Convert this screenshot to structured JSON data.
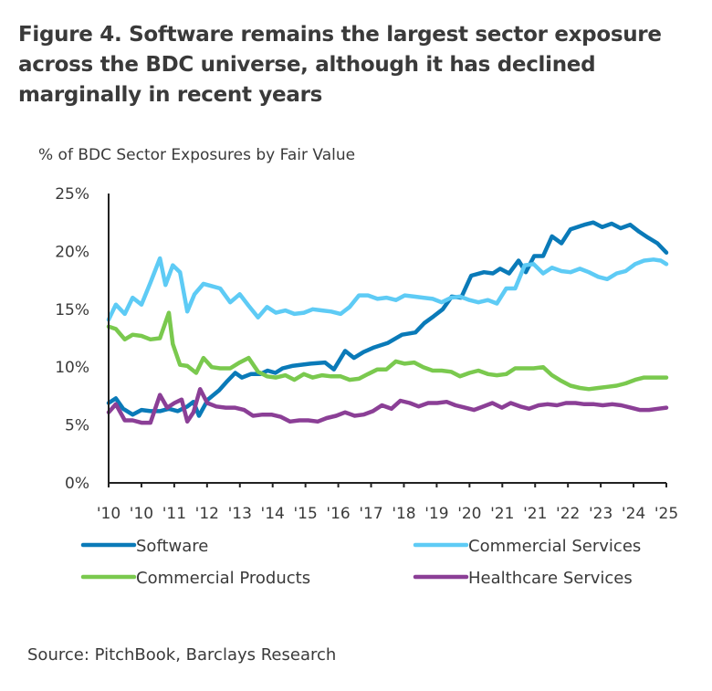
{
  "title": "Figure 4. Software remains the largest sector exposure across the BDC universe, although it has declined marginally in recent years",
  "source": "Source: PitchBook, Barclays Research",
  "chart_data": {
    "type": "line",
    "title": "Figure 4. Software remains the largest sector exposure across the BDC universe, although it has declined marginally in recent years",
    "subtitle": "% of BDC Sector Exposures by Fair Value",
    "xlabel": "",
    "ylabel": "% of BDC Sector Exposures by Fair Value",
    "ylim": [
      0,
      25
    ],
    "y_ticks": [
      0,
      5,
      10,
      15,
      20,
      25
    ],
    "y_tick_labels": [
      "0%",
      "5%",
      "10%",
      "15%",
      "20%",
      "25%"
    ],
    "x_tick_labels": [
      "'10",
      "'10",
      "'11",
      "'12",
      "'13",
      "'14",
      "'15",
      "'16",
      "'17",
      "'18",
      "'19",
      "'20",
      "'21",
      "'21",
      "'22",
      "'23",
      "'24",
      "'25"
    ],
    "x_range": [
      0,
      1
    ],
    "grid": false,
    "legend": "bottom",
    "series": [
      {
        "name": "Software",
        "color": "#0a7ab8",
        "x": [
          0,
          0.013,
          0.026,
          0.043,
          0.059,
          0.075,
          0.092,
          0.108,
          0.124,
          0.141,
          0.152,
          0.162,
          0.178,
          0.198,
          0.211,
          0.227,
          0.239,
          0.255,
          0.272,
          0.285,
          0.299,
          0.312,
          0.329,
          0.362,
          0.388,
          0.404,
          0.424,
          0.44,
          0.457,
          0.476,
          0.501,
          0.526,
          0.55,
          0.566,
          0.583,
          0.599,
          0.615,
          0.632,
          0.65,
          0.673,
          0.689,
          0.702,
          0.718,
          0.735,
          0.748,
          0.763,
          0.779,
          0.795,
          0.812,
          0.828,
          0.853,
          0.869,
          0.885,
          0.902,
          0.918,
          0.935,
          0.951,
          0.967,
          0.984,
          1.0
        ],
        "values": [
          6.9,
          7.3,
          6.4,
          5.9,
          6.3,
          6.2,
          6.2,
          6.4,
          6.2,
          6.6,
          7.0,
          5.8,
          7.2,
          8.0,
          8.7,
          9.5,
          9.1,
          9.4,
          9.4,
          9.7,
          9.5,
          9.9,
          10.1,
          10.3,
          10.4,
          9.8,
          11.4,
          10.8,
          11.3,
          11.7,
          12.1,
          12.8,
          13.0,
          13.8,
          14.4,
          15.0,
          16.1,
          16.0,
          17.9,
          18.2,
          18.1,
          18.5,
          18.1,
          19.2,
          18.2,
          19.6,
          19.6,
          21.3,
          20.7,
          21.9,
          22.3,
          22.5,
          22.1,
          22.4,
          22.0,
          22.3,
          21.7,
          21.2,
          20.7,
          19.9
        ]
      },
      {
        "name": "Commercial Services",
        "color": "#5ecbf5",
        "x": [
          0,
          0.013,
          0.029,
          0.043,
          0.059,
          0.075,
          0.092,
          0.102,
          0.115,
          0.128,
          0.141,
          0.154,
          0.17,
          0.185,
          0.2,
          0.218,
          0.235,
          0.251,
          0.268,
          0.284,
          0.3,
          0.317,
          0.333,
          0.35,
          0.366,
          0.383,
          0.399,
          0.416,
          0.432,
          0.449,
          0.465,
          0.482,
          0.498,
          0.515,
          0.531,
          0.548,
          0.564,
          0.581,
          0.597,
          0.614,
          0.63,
          0.647,
          0.663,
          0.68,
          0.696,
          0.713,
          0.729,
          0.746,
          0.762,
          0.779,
          0.795,
          0.812,
          0.828,
          0.845,
          0.861,
          0.878,
          0.894,
          0.911,
          0.927,
          0.944,
          0.96,
          0.977,
          0.99,
          1.0
        ],
        "values": [
          14.1,
          15.4,
          14.6,
          16.0,
          15.4,
          17.3,
          19.4,
          17.1,
          18.8,
          18.2,
          14.8,
          16.3,
          17.2,
          17.0,
          16.8,
          15.6,
          16.3,
          15.3,
          14.3,
          15.2,
          14.7,
          14.9,
          14.6,
          14.7,
          15.0,
          14.9,
          14.8,
          14.6,
          15.2,
          16.2,
          16.2,
          15.9,
          16.0,
          15.8,
          16.2,
          16.1,
          16.0,
          15.9,
          15.6,
          16.0,
          16.1,
          15.8,
          15.6,
          15.8,
          15.5,
          16.8,
          16.8,
          18.8,
          18.9,
          18.1,
          18.6,
          18.3,
          18.2,
          18.5,
          18.2,
          17.8,
          17.6,
          18.1,
          18.3,
          18.9,
          19.2,
          19.3,
          19.2,
          18.9
        ]
      },
      {
        "name": "Commercial Products",
        "color": "#7ac94e",
        "x": [
          0,
          0.013,
          0.029,
          0.043,
          0.059,
          0.075,
          0.092,
          0.108,
          0.115,
          0.128,
          0.141,
          0.157,
          0.17,
          0.185,
          0.2,
          0.218,
          0.235,
          0.251,
          0.268,
          0.284,
          0.3,
          0.317,
          0.333,
          0.35,
          0.366,
          0.383,
          0.399,
          0.416,
          0.432,
          0.449,
          0.465,
          0.482,
          0.498,
          0.515,
          0.531,
          0.548,
          0.564,
          0.581,
          0.597,
          0.614,
          0.63,
          0.647,
          0.663,
          0.68,
          0.696,
          0.713,
          0.729,
          0.746,
          0.762,
          0.779,
          0.795,
          0.812,
          0.828,
          0.845,
          0.861,
          0.878,
          0.894,
          0.911,
          0.927,
          0.944,
          0.96,
          0.977,
          1.0
        ],
        "values": [
          13.5,
          13.3,
          12.4,
          12.8,
          12.7,
          12.4,
          12.5,
          14.7,
          12.0,
          10.2,
          10.1,
          9.5,
          10.8,
          10.0,
          9.9,
          9.9,
          10.4,
          10.8,
          9.6,
          9.2,
          9.1,
          9.3,
          8.9,
          9.4,
          9.1,
          9.3,
          9.2,
          9.2,
          8.9,
          9.0,
          9.4,
          9.8,
          9.8,
          10.5,
          10.3,
          10.4,
          10.0,
          9.7,
          9.7,
          9.6,
          9.2,
          9.5,
          9.7,
          9.4,
          9.3,
          9.4,
          9.9,
          9.9,
          9.9,
          10.0,
          9.3,
          8.8,
          8.4,
          8.2,
          8.1,
          8.2,
          8.3,
          8.4,
          8.6,
          8.9,
          9.1,
          9.1,
          9.1
        ]
      },
      {
        "name": "Healthcare Services",
        "color": "#8b3f96",
        "x": [
          0,
          0.013,
          0.029,
          0.043,
          0.059,
          0.075,
          0.092,
          0.105,
          0.118,
          0.131,
          0.141,
          0.152,
          0.164,
          0.177,
          0.193,
          0.21,
          0.226,
          0.243,
          0.259,
          0.276,
          0.292,
          0.309,
          0.325,
          0.342,
          0.358,
          0.375,
          0.391,
          0.408,
          0.424,
          0.441,
          0.457,
          0.474,
          0.49,
          0.507,
          0.523,
          0.54,
          0.556,
          0.573,
          0.589,
          0.606,
          0.622,
          0.639,
          0.655,
          0.672,
          0.688,
          0.705,
          0.721,
          0.738,
          0.754,
          0.771,
          0.787,
          0.804,
          0.82,
          0.837,
          0.853,
          0.87,
          0.886,
          0.903,
          0.919,
          0.936,
          0.952,
          0.969,
          0.985,
          1.0
        ],
        "values": [
          6.1,
          6.8,
          5.4,
          5.4,
          5.2,
          5.2,
          7.6,
          6.5,
          6.9,
          7.2,
          5.3,
          6.1,
          8.1,
          6.9,
          6.6,
          6.5,
          6.5,
          6.3,
          5.8,
          5.9,
          5.9,
          5.7,
          5.3,
          5.4,
          5.4,
          5.3,
          5.6,
          5.8,
          6.1,
          5.8,
          5.9,
          6.2,
          6.7,
          6.4,
          7.1,
          6.9,
          6.6,
          6.9,
          6.9,
          7.0,
          6.7,
          6.5,
          6.3,
          6.6,
          6.9,
          6.5,
          6.9,
          6.6,
          6.4,
          6.7,
          6.8,
          6.7,
          6.9,
          6.9,
          6.8,
          6.8,
          6.7,
          6.8,
          6.7,
          6.5,
          6.3,
          6.3,
          6.4,
          6.5
        ]
      }
    ]
  }
}
